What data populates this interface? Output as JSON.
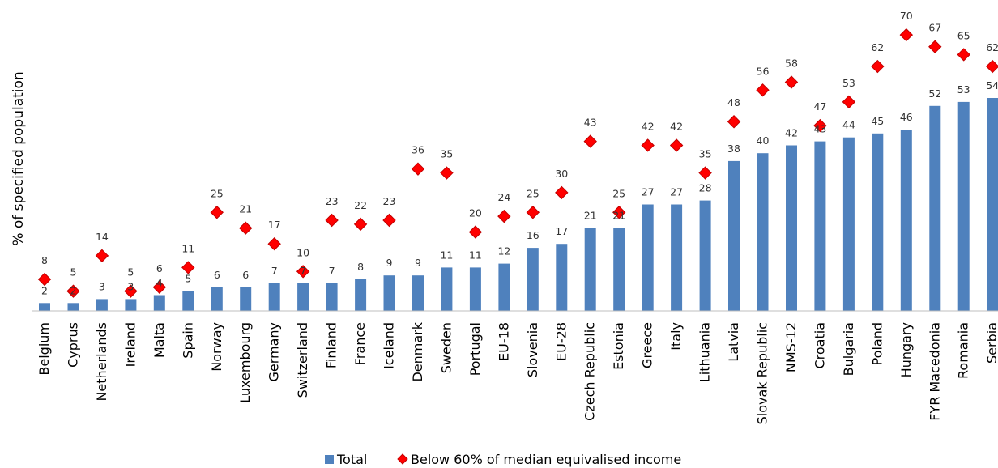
{
  "chart_data": {
    "type": "bar",
    "ylabel": "% of specified population",
    "xlabel": "",
    "categories": [
      "Belgium",
      "Cyprus",
      "Netherlands",
      "Ireland",
      "Malta",
      "Spain",
      "Norway",
      "Luxembourg",
      "Germany",
      "Switzerland",
      "Finland",
      "France",
      "Iceland",
      "Denmark",
      "Sweden",
      "Portugal",
      "EU-18",
      "Slovenia",
      "EU-28",
      "Czech Republic",
      "Estonia",
      "Greece",
      "Italy",
      "Lithuania",
      "Latvia",
      "Slovak Republic",
      "NMS-12",
      "Croatia",
      "Bulgaria",
      "Poland",
      "Hungary",
      "FYR Macedonia",
      "Romania",
      "Serbia"
    ],
    "series": [
      {
        "name": "Total",
        "type": "bar",
        "color": "#4f81bd",
        "values": [
          2,
          2,
          3,
          3,
          4,
          5,
          6,
          6,
          7,
          7,
          7,
          8,
          9,
          9,
          11,
          11,
          12,
          16,
          17,
          21,
          21,
          27,
          27,
          28,
          38,
          40,
          42,
          43,
          44,
          45,
          46,
          52,
          53,
          54
        ]
      },
      {
        "name": "Below 60% of median equivalised income",
        "type": "marker",
        "marker": "diamond",
        "color": "#ff0000",
        "values": [
          8,
          5,
          14,
          5,
          6,
          11,
          25,
          21,
          17,
          10,
          23,
          22,
          23,
          36,
          35,
          20,
          24,
          25,
          30,
          43,
          25,
          42,
          42,
          35,
          48,
          56,
          58,
          47,
          53,
          62,
          70,
          67,
          65,
          62
        ]
      }
    ],
    "ylim": [
      0,
      75
    ],
    "grid": false,
    "legend_position": "bottom-center"
  }
}
